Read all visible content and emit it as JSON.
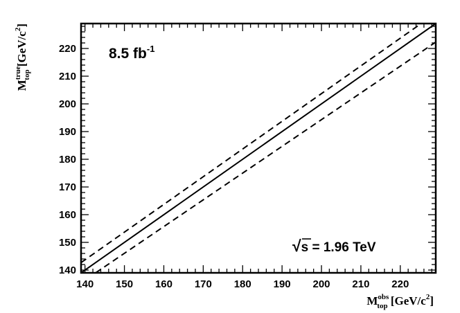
{
  "chart_data": {
    "type": "line",
    "xlim": [
      139,
      229
    ],
    "ylim": [
      139,
      229
    ],
    "x_ticks": [
      140,
      150,
      160,
      170,
      180,
      190,
      200,
      210,
      220
    ],
    "y_ticks": [
      140,
      150,
      160,
      170,
      180,
      190,
      200,
      210,
      220
    ],
    "xlabel": {
      "main": "M",
      "sup": "obs",
      "sub": "top",
      "unit_pre": " [GeV/c",
      "unit_sup": "2",
      "unit_post": "]"
    },
    "ylabel": {
      "main": "M",
      "sup": "true",
      "sub": "top",
      "unit_pre": " [GeV/c",
      "unit_sup": "2",
      "unit_post": "]"
    },
    "series": [
      {
        "style": "solid",
        "x": [
          139,
          229
        ],
        "y": [
          139,
          229
        ]
      },
      {
        "style": "dashed",
        "x": [
          139,
          225.3
        ],
        "y": [
          142.7,
          229
        ]
      },
      {
        "style": "dashed",
        "x": [
          142.7,
          229
        ],
        "y": [
          139,
          222.3
        ]
      }
    ],
    "grid": false,
    "annotations": {
      "luminosity": {
        "main": "8.5 fb",
        "sup": "-1"
      },
      "energy": {
        "radical": "√",
        "symbol": "s",
        "text": " = 1.96  TeV"
      }
    }
  }
}
